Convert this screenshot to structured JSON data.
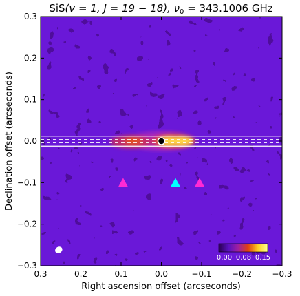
{
  "chart_data": {
    "type": "heatmap",
    "title": "SiS(v = 1, J = 19 − 18), ν₀ = 343.1006 GHz",
    "title_parts": {
      "molecule": "SiS",
      "transition": "(v = 1,  J = 19 − 18), ν",
      "subscript": "0",
      "frequency": " = 343.1006 GHz"
    },
    "xlabel": "Right ascension offset (arcseconds)",
    "ylabel": "Declination offset (arcseconds)",
    "xlim": [
      0.3,
      -0.3
    ],
    "ylim": [
      -0.3,
      0.3
    ],
    "x_ticks": [
      0.3,
      0.2,
      0.1,
      0.0,
      -0.1,
      -0.2,
      -0.3
    ],
    "y_ticks": [
      -0.3,
      -0.2,
      -0.1,
      0.0,
      0.1,
      0.2,
      0.3
    ],
    "x_tick_labels": [
      "0.3",
      "0.2",
      "0.1",
      "0.0",
      "−0.1",
      "−0.2",
      "−0.3"
    ],
    "y_tick_labels": [
      "−0.3",
      "−0.2",
      "−0.1",
      "0.0",
      "0.1",
      "0.2",
      "0.3"
    ],
    "colorbar": {
      "min": 0.0,
      "max": 0.15,
      "tick_labels": [
        "0.00",
        "0.08",
        "0.15"
      ],
      "colors": [
        "#2a0050",
        "#5a10c0",
        "#a020a0",
        "#e04010",
        "#ffd020",
        "#ffff90"
      ]
    },
    "emission_peaks": [
      {
        "x": 0.07,
        "y": 0.0,
        "intensity": 0.07
      },
      {
        "x": -0.02,
        "y": 0.0,
        "intensity": 0.14
      },
      {
        "x": -0.05,
        "y": 0.0,
        "intensity": 0.15
      }
    ],
    "horizontal_lines": {
      "solid_y": [
        0.012,
        -0.012
      ],
      "dashed_y": [
        0.004,
        -0.004
      ]
    },
    "central_marker": {
      "x": 0.0,
      "y": 0.0,
      "shape": "circle",
      "color": "#ffffff"
    },
    "triangle_markers": [
      {
        "x": 0.095,
        "y": -0.1,
        "color": "#ff2ad4"
      },
      {
        "x": -0.035,
        "y": -0.1,
        "color": "#00ffff"
      },
      {
        "x": -0.095,
        "y": -0.1,
        "color": "#ff2ad4"
      }
    ],
    "beam": {
      "x": 0.255,
      "y": -0.262,
      "color": "#ffffff"
    }
  }
}
